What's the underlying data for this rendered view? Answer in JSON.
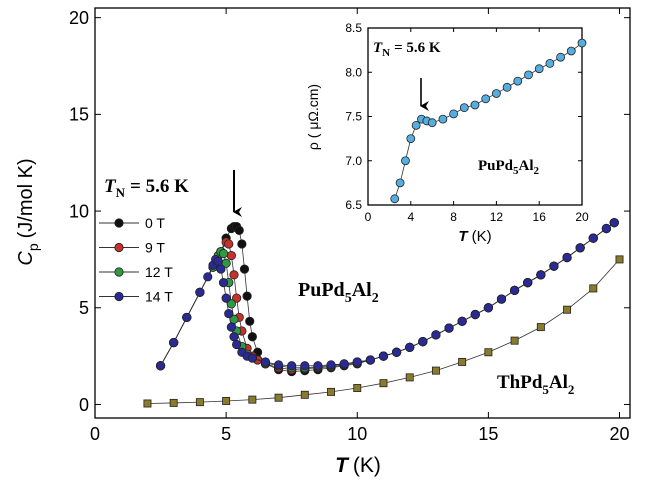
{
  "chart_data": [
    {
      "type": "line",
      "x_label": [
        "T",
        "(K)"
      ],
      "y_label": [
        "C",
        "p",
        "(J/mol K)"
      ],
      "xlim": [
        0,
        20.4
      ],
      "xticks": [
        0,
        5,
        10,
        15,
        20
      ],
      "ylim": [
        -0.7,
        20.5
      ],
      "yticks": [
        0,
        5,
        10,
        15,
        20
      ],
      "legend": "upper left",
      "annotations": {
        "tn": [
          "T",
          "N",
          "= 5.6 K"
        ],
        "compound": [
          "PuPd",
          "5",
          "Al",
          "2"
        ],
        "reference": [
          "ThPd",
          "5",
          "Al",
          "2"
        ]
      },
      "series": [
        {
          "color": "#8a7a2c",
          "marker": "square",
          "x": [
            2,
            3,
            4,
            5,
            6,
            7,
            8,
            9,
            10,
            11,
            12,
            13,
            14,
            15,
            16,
            17,
            18,
            19,
            20
          ],
          "values": [
            0.05,
            0.08,
            0.12,
            0.18,
            0.25,
            0.35,
            0.5,
            0.65,
            0.85,
            1.1,
            1.4,
            1.75,
            2.2,
            2.7,
            3.3,
            4.0,
            4.9,
            6.0,
            7.5
          ]
        },
        {
          "name": "0 T",
          "color": "#111111",
          "marker": "circle",
          "x": [
            2.5,
            3,
            3.5,
            4,
            4.5,
            4.8,
            5,
            5.2,
            5.3,
            5.4,
            5.5,
            5.6,
            5.7,
            5.8,
            5.9,
            6,
            6.2,
            6.5,
            7,
            7.5,
            8,
            8.5,
            9,
            9.5,
            10,
            10.5,
            11,
            11.5,
            12,
            12.5,
            13,
            13.5,
            14,
            14.5,
            15,
            15.5,
            16,
            16.5,
            17,
            17.5,
            18,
            18.5,
            19,
            19.5,
            19.8
          ],
          "values": [
            2.0,
            3.2,
            4.5,
            5.8,
            7.1,
            7.9,
            8.6,
            9.1,
            9.2,
            9.2,
            9.0,
            8.3,
            7.0,
            5.6,
            4.3,
            3.5,
            2.7,
            2.1,
            1.8,
            1.7,
            1.75,
            1.8,
            1.9,
            2.0,
            2.1,
            2.3,
            2.5,
            2.7,
            2.95,
            3.25,
            3.6,
            3.95,
            4.3,
            4.65,
            5.0,
            5.45,
            5.9,
            6.3,
            6.7,
            7.15,
            7.6,
            8.1,
            8.6,
            9.1,
            9.4
          ]
        },
        {
          "name": "9 T",
          "color": "#c8302c",
          "marker": "circle",
          "x": [
            2.5,
            3,
            3.5,
            4,
            4.5,
            4.8,
            5,
            5.1,
            5.2,
            5.3,
            5.4,
            5.5,
            5.6,
            5.8,
            6,
            6.2,
            6.5,
            7,
            7.5,
            8,
            8.5,
            9,
            9.5,
            10,
            10.5,
            11,
            11.5,
            12,
            12.5,
            13,
            13.5,
            14,
            14.5,
            15,
            15.5,
            16,
            16.5,
            17,
            17.5,
            18,
            18.5,
            19,
            19.5,
            19.8
          ],
          "values": [
            2.0,
            3.2,
            4.5,
            5.8,
            7.1,
            7.9,
            8.4,
            8.3,
            7.7,
            6.7,
            5.5,
            4.5,
            3.8,
            2.9,
            2.5,
            2.3,
            2.1,
            1.9,
            1.8,
            1.85,
            1.9,
            1.95,
            2.05,
            2.15,
            2.3,
            2.5,
            2.7,
            2.95,
            3.25,
            3.6,
            3.95,
            4.3,
            4.65,
            5.0,
            5.45,
            5.9,
            6.3,
            6.7,
            7.15,
            7.6,
            8.1,
            8.6,
            9.1,
            9.4
          ]
        },
        {
          "name": "12 T",
          "color": "#2f9a45",
          "marker": "circle",
          "x": [
            2.5,
            3,
            3.5,
            4,
            4.5,
            4.7,
            4.8,
            4.9,
            5,
            5.1,
            5.2,
            5.3,
            5.4,
            5.6,
            5.8,
            6,
            6.5,
            7,
            7.5,
            8,
            8.5,
            9,
            9.5,
            10,
            10.5,
            11,
            11.5,
            12,
            12.5,
            13,
            13.5,
            14,
            14.5,
            15,
            15.5,
            16,
            16.5,
            17,
            17.5,
            18,
            18.5,
            19,
            19.5,
            19.8
          ],
          "values": [
            2.0,
            3.2,
            4.5,
            5.8,
            7.1,
            7.7,
            7.9,
            7.8,
            7.3,
            6.3,
            5.2,
            4.4,
            3.8,
            3.0,
            2.6,
            2.4,
            2.15,
            2.0,
            1.9,
            1.9,
            1.95,
            2.0,
            2.1,
            2.2,
            2.3,
            2.5,
            2.7,
            2.95,
            3.25,
            3.6,
            3.95,
            4.3,
            4.65,
            5.0,
            5.45,
            5.9,
            6.3,
            6.7,
            7.15,
            7.6,
            8.1,
            8.6,
            9.1,
            9.4
          ]
        },
        {
          "name": "14 T",
          "color": "#2a2a96",
          "marker": "circle",
          "x": [
            2.5,
            3,
            3.5,
            4,
            4.3,
            4.5,
            4.6,
            4.7,
            4.8,
            4.9,
            5,
            5.1,
            5.2,
            5.3,
            5.4,
            5.6,
            5.8,
            6,
            6.5,
            7,
            7.5,
            8,
            8.5,
            9,
            9.5,
            10,
            10.5,
            11,
            11.5,
            12,
            12.5,
            13,
            13.5,
            14,
            14.5,
            15,
            15.5,
            16,
            16.5,
            17,
            17.5,
            18,
            18.5,
            19,
            19.5,
            19.8
          ],
          "values": [
            2.0,
            3.2,
            4.5,
            5.8,
            6.6,
            7.2,
            7.5,
            7.4,
            7.0,
            6.3,
            5.5,
            4.7,
            4.0,
            3.5,
            3.1,
            2.7,
            2.5,
            2.4,
            2.2,
            2.05,
            2.0,
            2.0,
            2.0,
            2.05,
            2.1,
            2.2,
            2.3,
            2.5,
            2.7,
            2.95,
            3.25,
            3.6,
            3.95,
            4.3,
            4.65,
            5.0,
            5.45,
            5.9,
            6.3,
            6.7,
            7.15,
            7.6,
            8.1,
            8.6,
            9.1,
            9.4
          ]
        }
      ]
    },
    {
      "type": "line",
      "x_label": [
        "T",
        "(K)"
      ],
      "y_label": "ρ ( μΩ.cm)",
      "xlim": [
        0,
        20
      ],
      "xticks": [
        0,
        4,
        8,
        12,
        16,
        20
      ],
      "ylim": [
        6.5,
        8.5
      ],
      "yticks": [
        6.5,
        {
          "value": 7,
          "label": "7.0"
        },
        7.5,
        {
          "value": 8,
          "label": "8.0"
        },
        8.5
      ],
      "annotations": {
        "tn": [
          "T",
          "N",
          "= 5.6 K"
        ],
        "compound": [
          "PuPd",
          "5",
          "Al",
          "2"
        ]
      },
      "series": [
        {
          "color": "#56aee0",
          "marker": "circle",
          "x": [
            2.5,
            3,
            3.5,
            4,
            4.5,
            5,
            5.5,
            6,
            7,
            8,
            9,
            10,
            11,
            12,
            13,
            14,
            15,
            16,
            17,
            18,
            19,
            20
          ],
          "values": [
            6.57,
            6.75,
            7.0,
            7.25,
            7.4,
            7.47,
            7.45,
            7.43,
            7.47,
            7.53,
            7.6,
            7.63,
            7.7,
            7.76,
            7.83,
            7.9,
            7.97,
            8.04,
            8.1,
            8.17,
            8.24,
            8.33
          ]
        }
      ]
    }
  ]
}
